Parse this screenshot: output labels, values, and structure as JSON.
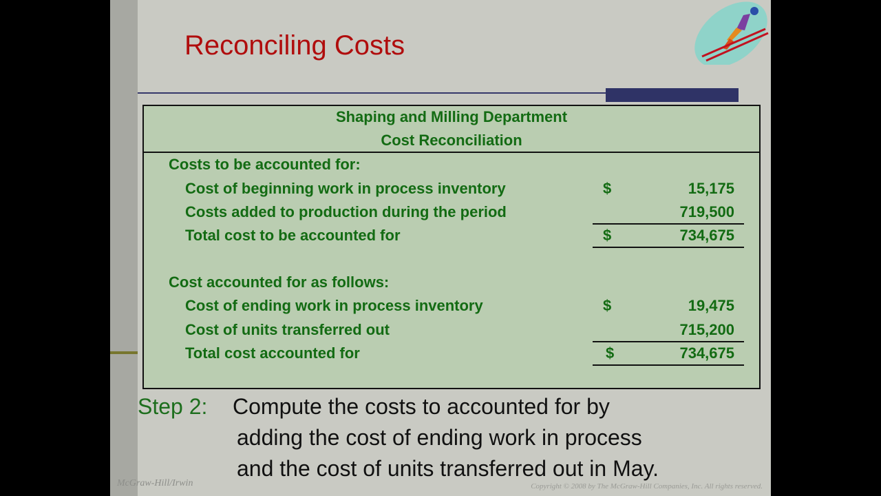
{
  "slide": {
    "title": "Reconciling Costs",
    "logo_icon": "ski-jumper-icon",
    "table": {
      "header_line1": "Shaping and Milling Department",
      "header_line2": "Cost Reconciliation",
      "rows": [
        {
          "label": "Costs to be accounted for:",
          "dollar": "",
          "amount": ""
        },
        {
          "label": "Cost of beginning work in process inventory",
          "dollar": "$",
          "amount": "15,175"
        },
        {
          "label": "Costs added to production during the period",
          "dollar": "",
          "amount": "719,500"
        },
        {
          "label": "Total cost to be accounted for",
          "dollar": "$",
          "amount": "734,675"
        },
        {
          "label": "Cost accounted for as follows:",
          "dollar": "",
          "amount": ""
        },
        {
          "label": "Cost of ending work in process inventory",
          "dollar": "$",
          "amount": "19,475"
        },
        {
          "label": "Cost of units transferred out",
          "dollar": "",
          "amount": "715,200"
        },
        {
          "label": "Total cost accounted for",
          "dollar": "$",
          "amount": "734,675"
        }
      ]
    },
    "step": {
      "label": "Step 2:",
      "lines": [
        "Compute the costs to accounted for by",
        "adding the cost of ending work in process",
        "and the cost of units transferred out in May."
      ]
    },
    "footer_left": "McGraw-Hill/Irwin",
    "footer_right": "Copyright © 2008 by The McGraw-Hill Companies, Inc. All rights reserved.",
    "colors": {
      "title": "#b00d0d",
      "table_text": "#136b13",
      "table_bg": "#bacdb1",
      "step_label": "#1d6e1d"
    }
  }
}
